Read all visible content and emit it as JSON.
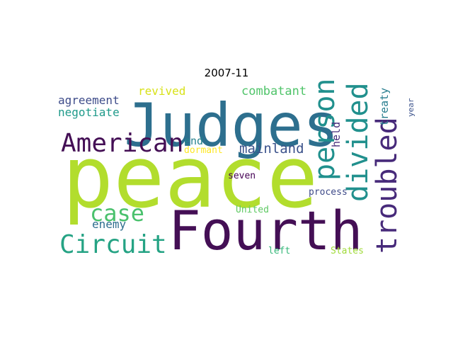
{
  "title": "2007-11",
  "words": [
    {
      "text": "peace",
      "color": "#b2dd2d"
    },
    {
      "text": "Judges",
      "color": "#2d6f8e"
    },
    {
      "text": "Fourth",
      "color": "#440f55"
    },
    {
      "text": "American",
      "color": "#440f55"
    },
    {
      "text": "person",
      "color": "#20908d"
    },
    {
      "text": "divided",
      "color": "#21908d"
    },
    {
      "text": "troubled",
      "color": "#472a7a"
    },
    {
      "text": "Circuit",
      "color": "#25a384"
    },
    {
      "text": "case",
      "color": "#4ac16d"
    },
    {
      "text": "mainland",
      "color": "#3b528b"
    },
    {
      "text": "combatant",
      "color": "#50c46a"
    },
    {
      "text": "agreement",
      "color": "#3e4c8a"
    },
    {
      "text": "negotiate",
      "color": "#1f9a8a"
    },
    {
      "text": "revived",
      "color": "#d8e219"
    },
    {
      "text": "enemy",
      "color": "#2e6e8e"
    },
    {
      "text": "treaty",
      "color": "#287d8e"
    },
    {
      "text": "year",
      "color": "#3b528b"
    },
    {
      "text": "held",
      "color": "#472d7b"
    },
    {
      "text": "end",
      "color": "#26818e"
    },
    {
      "text": "dormant",
      "color": "#fde725"
    },
    {
      "text": "seven",
      "color": "#440154"
    },
    {
      "text": "process",
      "color": "#3e4a89"
    },
    {
      "text": "United",
      "color": "#5ec962"
    },
    {
      "text": "left",
      "color": "#35b779"
    },
    {
      "text": "States",
      "color": "#a0da39"
    }
  ]
}
